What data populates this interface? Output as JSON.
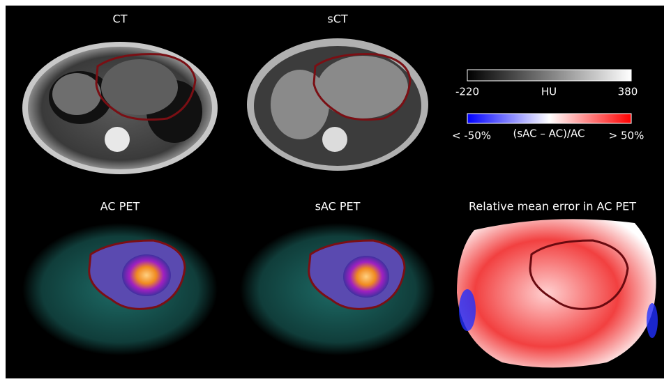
{
  "panels": {
    "ct": {
      "title": "CT"
    },
    "sct": {
      "title": "sCT"
    },
    "ac_pet": {
      "title": "AC PET"
    },
    "sac_pet": {
      "title": "sAC PET"
    },
    "error_map": {
      "title": "Relative mean error in AC PET"
    }
  },
  "colorbars": {
    "hu": {
      "min_label": "-220",
      "label": "HU",
      "max_label": "380"
    },
    "error": {
      "min_label": "< -50%",
      "label": "(sAC – AC)/AC",
      "max_label": "> 50%"
    }
  }
}
